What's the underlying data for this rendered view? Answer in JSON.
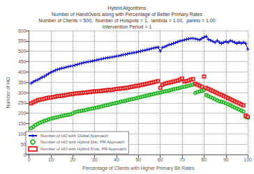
{
  "chart_data": {
    "type": "line",
    "title": "Hybrid Algorithms\nNumber of HandOvers along with Percentage of Better Primary Rates\nNumber of Clients = 500,  Number of Hotspots = 1,  lambda = 1.00,  pareto = 1.00\nIntervention Period = 1",
    "xlabel": "Percentage of Clients with Higher Primary Bit Rates",
    "ylabel": "Number of HO",
    "xlim": [
      0,
      100
    ],
    "ylim": [
      0,
      600
    ],
    "xticks": [
      0,
      10,
      20,
      30,
      40,
      50,
      60,
      70,
      80,
      90,
      100
    ],
    "yticks": [
      0,
      50,
      100,
      150,
      200,
      250,
      300,
      350,
      400,
      450,
      500,
      550,
      600
    ],
    "grid": true,
    "legend": "lower left",
    "x": [
      1,
      2,
      3,
      4,
      5,
      6,
      7,
      8,
      9,
      10,
      11,
      12,
      13,
      14,
      15,
      16,
      17,
      18,
      19,
      20,
      21,
      22,
      23,
      24,
      25,
      26,
      27,
      28,
      29,
      30,
      31,
      32,
      33,
      34,
      35,
      36,
      37,
      38,
      39,
      40,
      41,
      42,
      43,
      44,
      45,
      46,
      47,
      48,
      49,
      50,
      51,
      52,
      53,
      54,
      55,
      56,
      57,
      58,
      59,
      60,
      61,
      62,
      63,
      64,
      65,
      66,
      67,
      68,
      69,
      70,
      71,
      72,
      73,
      74,
      75,
      76,
      77,
      78,
      79,
      80,
      81,
      82,
      83,
      84,
      85,
      86,
      87,
      88,
      89,
      90,
      91,
      92,
      93,
      94,
      95,
      96,
      97,
      98,
      99,
      100
    ],
    "series": [
      {
        "name": "Number of HO with Global Approach",
        "type": "line",
        "color": "#0000CC",
        "marker": "plus",
        "line_style": "solid",
        "values": [
          345,
          352,
          358,
          362,
          368,
          374,
          378,
          385,
          392,
          398,
          403,
          408,
          412,
          415,
          418,
          420,
          423,
          426,
          428,
          430,
          433,
          436,
          439,
          442,
          445,
          447,
          449,
          451,
          453,
          455,
          458,
          460,
          462,
          465,
          467,
          469,
          470,
          472,
          474,
          476,
          478,
          480,
          483,
          485,
          487,
          490,
          491,
          493,
          495,
          498,
          500,
          503,
          505,
          508,
          510,
          513,
          516,
          518,
          520,
          500,
          518,
          522,
          527,
          532,
          534,
          538,
          542,
          546,
          550,
          552,
          555,
          558,
          560,
          562,
          562,
          560,
          558,
          555,
          562,
          568,
          572,
          558,
          553,
          548,
          543,
          552,
          543,
          538,
          543,
          548,
          543,
          552,
          548,
          543,
          538,
          543,
          538,
          543,
          538,
          510
        ]
      },
      {
        "name": "Number of HO with Hybrid Dist. PR Approach",
        "type": "scatter",
        "color": "#00AA00",
        "marker": "circle",
        "values": [
          128,
          135,
          143,
          149,
          154,
          158,
          163,
          166,
          170,
          174,
          176,
          179,
          181,
          184,
          187,
          189,
          191,
          193,
          195,
          200,
          205,
          208,
          210,
          212,
          214,
          216,
          219,
          221,
          223,
          226,
          228,
          230,
          233,
          235,
          238,
          240,
          243,
          246,
          248,
          250,
          253,
          256,
          258,
          260,
          263,
          266,
          268,
          270,
          273,
          276,
          278,
          281,
          283,
          286,
          288,
          291,
          293,
          296,
          298,
          300,
          303,
          306,
          308,
          310,
          313,
          316,
          318,
          320,
          323,
          326,
          328,
          331,
          333,
          336,
          338,
          298,
          303,
          306,
          308,
          313,
          288,
          283,
          278,
          273,
          268,
          263,
          258,
          256,
          253,
          248,
          243,
          238,
          233,
          228,
          223,
          218,
          213,
          208,
          183,
          178
        ]
      },
      {
        "name": "Number of HO with Hybrid Prob. PR Approach",
        "type": "scatter",
        "color": "#DD0000",
        "marker": "square",
        "values": [
          248,
          253,
          258,
          263,
          266,
          268,
          270,
          273,
          276,
          276,
          278,
          280,
          283,
          283,
          285,
          286,
          288,
          290,
          293,
          293,
          296,
          296,
          298,
          298,
          300,
          300,
          303,
          303,
          305,
          306,
          306,
          308,
          308,
          310,
          310,
          313,
          313,
          313,
          316,
          318,
          318,
          320,
          320,
          323,
          323,
          326,
          328,
          330,
          333,
          333,
          336,
          338,
          341,
          343,
          346,
          348,
          350,
          353,
          356,
          323,
          338,
          343,
          346,
          348,
          350,
          353,
          356,
          358,
          363,
          368,
          353,
          356,
          358,
          363,
          366,
          343,
          338,
          333,
          328,
          378,
          323,
          318,
          313,
          308,
          303,
          298,
          293,
          288,
          283,
          278,
          273,
          268,
          263,
          258,
          253,
          248,
          243,
          238,
          188,
          183
        ]
      }
    ]
  }
}
